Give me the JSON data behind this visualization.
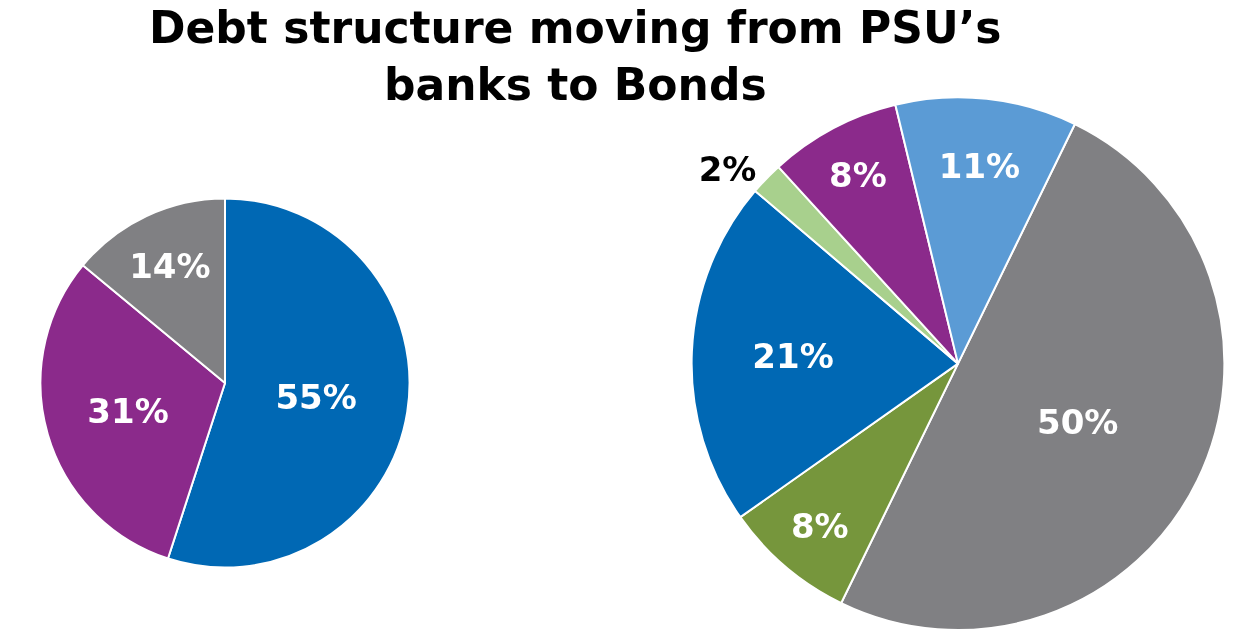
{
  "chart_data": [
    {
      "type": "pie",
      "title": "Debt structure moving from PSU’s\nbanks to Bonds",
      "categories": [
        null,
        null,
        null
      ],
      "values": [
        55,
        31,
        14
      ],
      "colors": [
        "#0068b4",
        "#8b2a8b",
        "#808083"
      ],
      "value_labels": [
        "55%",
        "31%",
        "14%"
      ]
    },
    {
      "type": "pie",
      "categories": [
        null,
        null,
        null,
        null,
        null,
        null
      ],
      "values": [
        50,
        8,
        21,
        2,
        8,
        11
      ],
      "colors": [
        "#808083",
        "#76963c",
        "#0068b4",
        "#a8d08d",
        "#8b2a8b",
        "#5b9bd5"
      ],
      "value_labels": [
        "50%",
        "8%",
        "21%",
        "2%",
        "8%",
        "11%"
      ]
    }
  ]
}
